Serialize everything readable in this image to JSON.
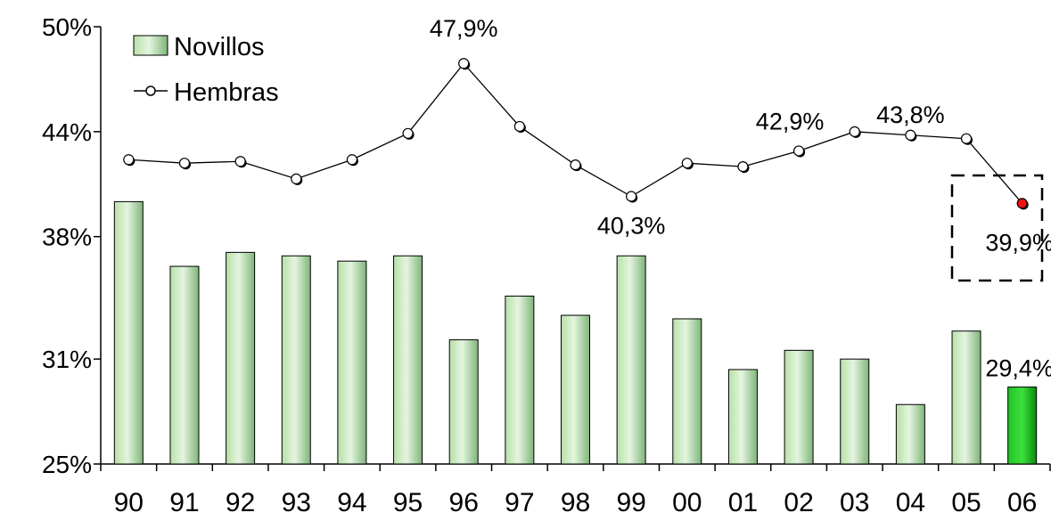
{
  "chart_data": {
    "type": "bar",
    "categories": [
      "90",
      "91",
      "92",
      "93",
      "94",
      "95",
      "96",
      "97",
      "98",
      "99",
      "00",
      "01",
      "02",
      "03",
      "04",
      "05",
      "06"
    ],
    "ylim": [
      25,
      50
    ],
    "y_ticks": [
      {
        "value": 25,
        "label": "25%"
      },
      {
        "value": 31,
        "label": "31%"
      },
      {
        "value": 38,
        "label": "38%"
      },
      {
        "value": 44,
        "label": "44%"
      },
      {
        "value": 50,
        "label": "50%"
      }
    ],
    "series": [
      {
        "name": "Novillos",
        "kind": "bar",
        "values": [
          40.0,
          36.3,
          37.1,
          36.9,
          36.6,
          36.9,
          32.1,
          34.6,
          33.5,
          36.9,
          33.3,
          30.4,
          31.5,
          31.0,
          28.4,
          32.6,
          29.4
        ]
      },
      {
        "name": "Hembras",
        "kind": "line",
        "values": [
          42.4,
          42.2,
          42.3,
          41.3,
          42.4,
          43.9,
          47.9,
          44.3,
          42.1,
          40.3,
          42.2,
          42.0,
          42.9,
          44.0,
          43.8,
          43.6,
          39.9
        ]
      }
    ],
    "data_labels": [
      {
        "series": "Hembras",
        "index": 6,
        "text": "47,9%"
      },
      {
        "series": "Hembras",
        "index": 9,
        "text": "40,3%"
      },
      {
        "series": "Hembras",
        "index": 12,
        "text": "42,9%"
      },
      {
        "series": "Hembras",
        "index": 14,
        "text": "43,8%"
      },
      {
        "series": "Hembras",
        "index": 16,
        "text": "39,9%"
      },
      {
        "series": "Novillos",
        "index": 16,
        "text": "29,4%"
      }
    ],
    "highlight_index": 16,
    "legend_position": "top-left",
    "grid": false,
    "colors": {
      "bar_light": "#e4f5df",
      "bar_mid": "#b8e0a8",
      "bar_dark": "#7fb57a",
      "bar_highlight": "#22c322",
      "bar_highlight_dark": "#0a8a0a",
      "line": "#000000",
      "marker_fill": "#ffffff",
      "marker_highlight": "#ee1111"
    }
  }
}
